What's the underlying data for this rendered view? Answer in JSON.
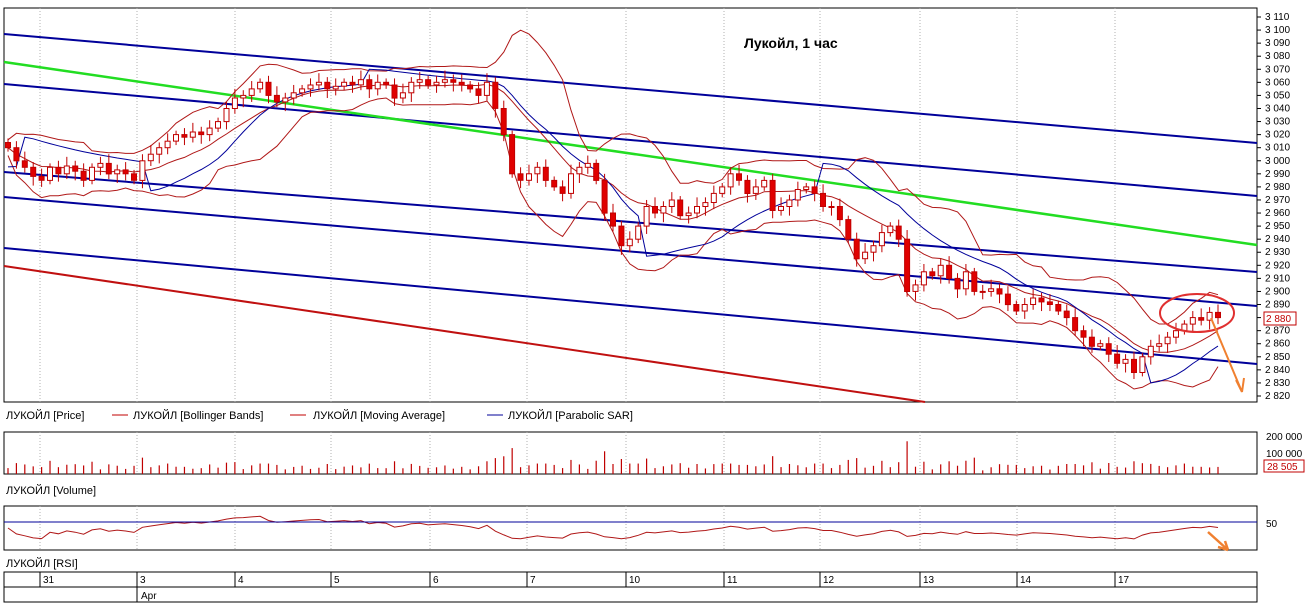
{
  "chart_data": [
    {
      "type": "candlestick",
      "title": "Лукойл, 1 час",
      "ylim": [
        2820,
        3110
      ],
      "ticks": [
        "3 110",
        "3 100",
        "3 090",
        "3 080",
        "3 070",
        "3 060",
        "3 050",
        "3 040",
        "3 030",
        "3 020",
        "3 010",
        "3 000",
        "2 990",
        "2 980",
        "2 970",
        "2 960",
        "2 950",
        "2 940",
        "2 930",
        "2 920",
        "2 910",
        "2 900",
        "2 890",
        "2 880",
        "2 870",
        "2 860",
        "2 850",
        "2 840",
        "2 830",
        "2 820"
      ],
      "tick_values": [
        3110,
        3100,
        3090,
        3080,
        3070,
        3060,
        3050,
        3040,
        3030,
        3020,
        3010,
        3000,
        2990,
        2980,
        2970,
        2960,
        2950,
        2940,
        2930,
        2920,
        2910,
        2900,
        2890,
        2880,
        2870,
        2860,
        2850,
        2840,
        2830,
        2820
      ],
      "last_price_label": "2 880",
      "last_price": 2880,
      "legend": [
        "ЛУКОЙЛ [Price]",
        "ЛУКОЙЛ [Bollinger Bands]",
        "ЛУКОЙЛ [Moving Average]",
        "ЛУКОЙЛ [Parabolic SAR]"
      ],
      "close": [
        3010,
        3000,
        2995,
        2988,
        2985,
        2995,
        2990,
        2996,
        2992,
        2985,
        2995,
        2998,
        2990,
        2993,
        2990,
        2985,
        3000,
        3005,
        3010,
        3015,
        3020,
        3018,
        3022,
        3020,
        3025,
        3030,
        3040,
        3048,
        3050,
        3055,
        3060,
        3050,
        3045,
        3048,
        3052,
        3055,
        3058,
        3060,
        3055,
        3057,
        3060,
        3058,
        3062,
        3055,
        3060,
        3058,
        3048,
        3052,
        3060,
        3062,
        3058,
        3060,
        3062,
        3060,
        3058,
        3055,
        3050,
        3060,
        3040,
        3020,
        2990,
        2985,
        2990,
        2995,
        2985,
        2980,
        2975,
        2990,
        2995,
        2998,
        2985,
        2960,
        2950,
        2935,
        2940,
        2950,
        2965,
        2960,
        2965,
        2970,
        2958,
        2960,
        2965,
        2968,
        2975,
        2980,
        2990,
        2985,
        2975,
        2980,
        2985,
        2962,
        2965,
        2970,
        2978,
        2980,
        2975,
        2965,
        2965,
        2955,
        2940,
        2925,
        2930,
        2935,
        2945,
        2950,
        2940,
        2900,
        2905,
        2915,
        2912,
        2920,
        2910,
        2902,
        2915,
        2900,
        2900,
        2902,
        2898,
        2890,
        2885,
        2890,
        2895,
        2892,
        2890,
        2885,
        2880,
        2870,
        2865,
        2858,
        2860,
        2852,
        2845,
        2848,
        2838,
        2850,
        2858,
        2860,
        2865,
        2870,
        2875,
        2880,
        2878,
        2884,
        2880
      ],
      "volume_ticks": [
        "200 000",
        "100 000"
      ],
      "volume_tick_values": [
        200000,
        100000
      ],
      "volume_last_label": "28 505",
      "volume_legend": "ЛУКОЙЛ [Volume]",
      "rsi_tick": "50",
      "rsi_legend": "ЛУКОЙЛ [RSI]",
      "dates": [
        "31",
        "3",
        "4",
        "5",
        "6",
        "7",
        "10",
        "11",
        "12",
        "13",
        "14",
        "17"
      ],
      "month_label": "Apr"
    }
  ]
}
